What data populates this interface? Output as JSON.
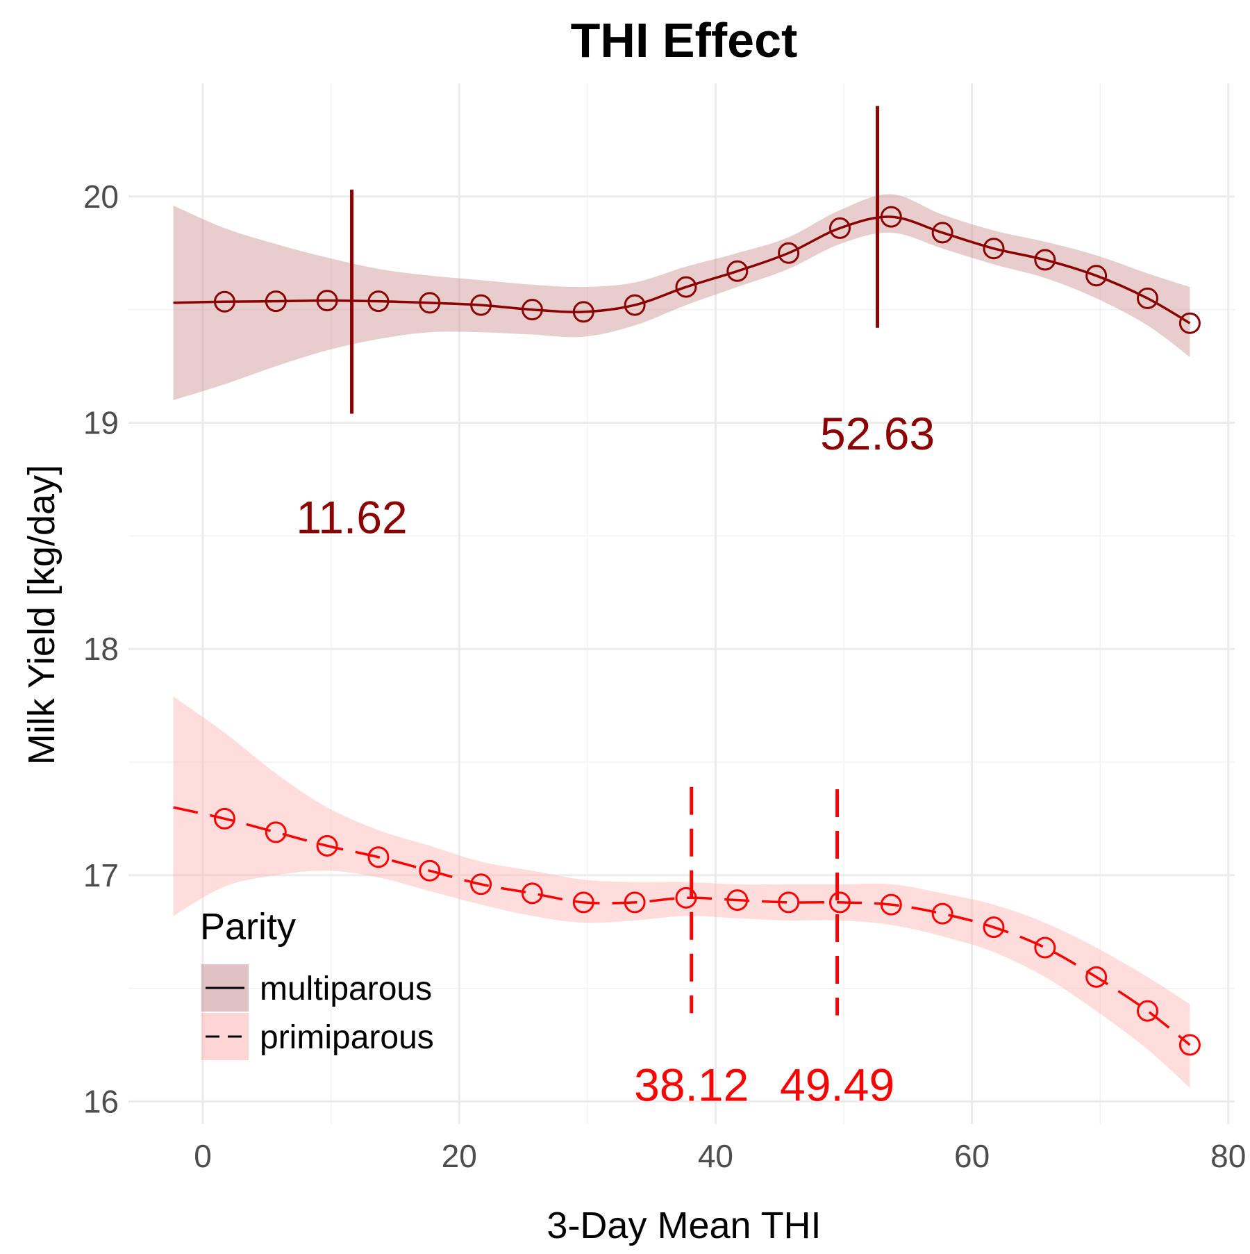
{
  "chart_data": {
    "type": "line",
    "title": "THI Effect",
    "xlabel": "3-Day Mean THI",
    "ylabel": "Milk Yield [kg/day]",
    "xlim": [
      -5.8,
      80.5
    ],
    "ylim": [
      15.9,
      20.5
    ],
    "x_ticks": [
      0,
      20,
      40,
      60,
      80
    ],
    "y_ticks": [
      16,
      17,
      18,
      19,
      20
    ],
    "grid": true,
    "legend": {
      "title": "Parity",
      "position": "bottom-left",
      "entries": [
        "multiparous",
        "primiparous"
      ]
    },
    "series": [
      {
        "name": "multiparous",
        "color": "#8B0000",
        "band_color": "#C9908F",
        "line_style": "solid",
        "curve": [
          [
            -2.3,
            19.53
          ],
          [
            1.7,
            19.535
          ],
          [
            5.7,
            19.537
          ],
          [
            9.7,
            19.54
          ],
          [
            13.7,
            19.537
          ],
          [
            17.7,
            19.53
          ],
          [
            21.7,
            19.52
          ],
          [
            25.7,
            19.5
          ],
          [
            29.7,
            19.49
          ],
          [
            33.7,
            19.52
          ],
          [
            37.7,
            19.6
          ],
          [
            41.7,
            19.67
          ],
          [
            45.7,
            19.75
          ],
          [
            49.7,
            19.86
          ],
          [
            53.7,
            19.91
          ],
          [
            57.7,
            19.84
          ],
          [
            61.7,
            19.77
          ],
          [
            65.7,
            19.72
          ],
          [
            69.7,
            19.65
          ],
          [
            73.7,
            19.55
          ],
          [
            77.0,
            19.44
          ]
        ],
        "points": [
          [
            1.7,
            19.535
          ],
          [
            5.7,
            19.537
          ],
          [
            9.7,
            19.54
          ],
          [
            13.7,
            19.537
          ],
          [
            17.7,
            19.53
          ],
          [
            21.7,
            19.52
          ],
          [
            25.7,
            19.5
          ],
          [
            29.7,
            19.49
          ],
          [
            33.7,
            19.52
          ],
          [
            37.7,
            19.6
          ],
          [
            41.7,
            19.67
          ],
          [
            45.7,
            19.75
          ],
          [
            49.7,
            19.86
          ],
          [
            53.7,
            19.91
          ],
          [
            57.7,
            19.84
          ],
          [
            61.7,
            19.77
          ],
          [
            65.7,
            19.72
          ],
          [
            69.7,
            19.65
          ],
          [
            73.7,
            19.55
          ],
          [
            77.0,
            19.44
          ]
        ],
        "band": [
          [
            -2.3,
            19.1,
            19.96
          ],
          [
            1.7,
            19.17,
            19.86
          ],
          [
            5.7,
            19.25,
            19.79
          ],
          [
            9.7,
            19.32,
            19.73
          ],
          [
            13.7,
            19.37,
            19.68
          ],
          [
            17.7,
            19.4,
            19.65
          ],
          [
            21.7,
            19.4,
            19.63
          ],
          [
            25.7,
            19.39,
            19.61
          ],
          [
            29.7,
            19.38,
            19.6
          ],
          [
            33.7,
            19.43,
            19.62
          ],
          [
            37.7,
            19.52,
            19.69
          ],
          [
            41.7,
            19.6,
            19.75
          ],
          [
            45.7,
            19.68,
            19.82
          ],
          [
            49.7,
            19.79,
            19.94
          ],
          [
            53.7,
            19.84,
            20.01
          ],
          [
            57.7,
            19.77,
            19.92
          ],
          [
            61.7,
            19.7,
            19.85
          ],
          [
            65.7,
            19.64,
            19.8
          ],
          [
            69.7,
            19.55,
            19.74
          ],
          [
            73.7,
            19.43,
            19.66
          ],
          [
            77.0,
            19.29,
            19.6
          ]
        ],
        "vlines": [
          {
            "x": 11.62,
            "ymin": 19.04,
            "ymax": 20.03,
            "label": "11.62",
            "label_y": 18.58
          },
          {
            "x": 52.63,
            "ymin": 19.42,
            "ymax": 20.4,
            "label": "52.63",
            "label_y": 18.95
          }
        ]
      },
      {
        "name": "primiparous",
        "color": "#FF0000",
        "band_color": "#FFB3B3",
        "line_style": "dashed",
        "curve": [
          [
            -2.3,
            17.3
          ],
          [
            1.7,
            17.25
          ],
          [
            5.7,
            17.19
          ],
          [
            9.7,
            17.13
          ],
          [
            13.7,
            17.08
          ],
          [
            17.7,
            17.02
          ],
          [
            21.7,
            16.96
          ],
          [
            25.7,
            16.92
          ],
          [
            29.7,
            16.88
          ],
          [
            33.7,
            16.88
          ],
          [
            37.7,
            16.9
          ],
          [
            41.7,
            16.89
          ],
          [
            45.7,
            16.88
          ],
          [
            49.7,
            16.88
          ],
          [
            53.7,
            16.87
          ],
          [
            57.7,
            16.83
          ],
          [
            61.7,
            16.77
          ],
          [
            65.7,
            16.68
          ],
          [
            69.7,
            16.55
          ],
          [
            73.7,
            16.4
          ],
          [
            77.0,
            16.25
          ]
        ],
        "points": [
          [
            1.7,
            17.25
          ],
          [
            5.7,
            17.19
          ],
          [
            9.7,
            17.13
          ],
          [
            13.7,
            17.08
          ],
          [
            17.7,
            17.02
          ],
          [
            21.7,
            16.96
          ],
          [
            25.7,
            16.92
          ],
          [
            29.7,
            16.88
          ],
          [
            33.7,
            16.88
          ],
          [
            37.7,
            16.9
          ],
          [
            41.7,
            16.89
          ],
          [
            45.7,
            16.88
          ],
          [
            49.7,
            16.88
          ],
          [
            53.7,
            16.87
          ],
          [
            57.7,
            16.83
          ],
          [
            61.7,
            16.77
          ],
          [
            65.7,
            16.68
          ],
          [
            69.7,
            16.55
          ],
          [
            73.7,
            16.4
          ],
          [
            77.0,
            16.25
          ]
        ],
        "band": [
          [
            -2.3,
            16.82,
            17.79
          ],
          [
            1.7,
            16.95,
            17.63
          ],
          [
            5.7,
            17.0,
            17.45
          ],
          [
            9.7,
            17.02,
            17.3
          ],
          [
            13.7,
            16.99,
            17.2
          ],
          [
            17.7,
            16.93,
            17.13
          ],
          [
            21.7,
            16.87,
            17.06
          ],
          [
            25.7,
            16.82,
            17.02
          ],
          [
            29.7,
            16.79,
            16.98
          ],
          [
            33.7,
            16.8,
            16.97
          ],
          [
            37.7,
            16.82,
            16.97
          ],
          [
            41.7,
            16.81,
            16.96
          ],
          [
            45.7,
            16.8,
            16.96
          ],
          [
            49.7,
            16.8,
            16.96
          ],
          [
            53.7,
            16.78,
            16.96
          ],
          [
            57.7,
            16.73,
            16.92
          ],
          [
            61.7,
            16.66,
            16.87
          ],
          [
            65.7,
            16.55,
            16.79
          ],
          [
            69.7,
            16.4,
            16.68
          ],
          [
            73.7,
            16.23,
            16.55
          ],
          [
            77.0,
            16.06,
            16.43
          ]
        ],
        "vlines": [
          {
            "x": 38.12,
            "ymin": 16.39,
            "ymax": 17.39,
            "label": "38.12",
            "label_y": 16.07
          },
          {
            "x": 49.49,
            "ymin": 16.38,
            "ymax": 17.38,
            "label": "49.49",
            "label_y": 16.07
          }
        ]
      }
    ]
  }
}
